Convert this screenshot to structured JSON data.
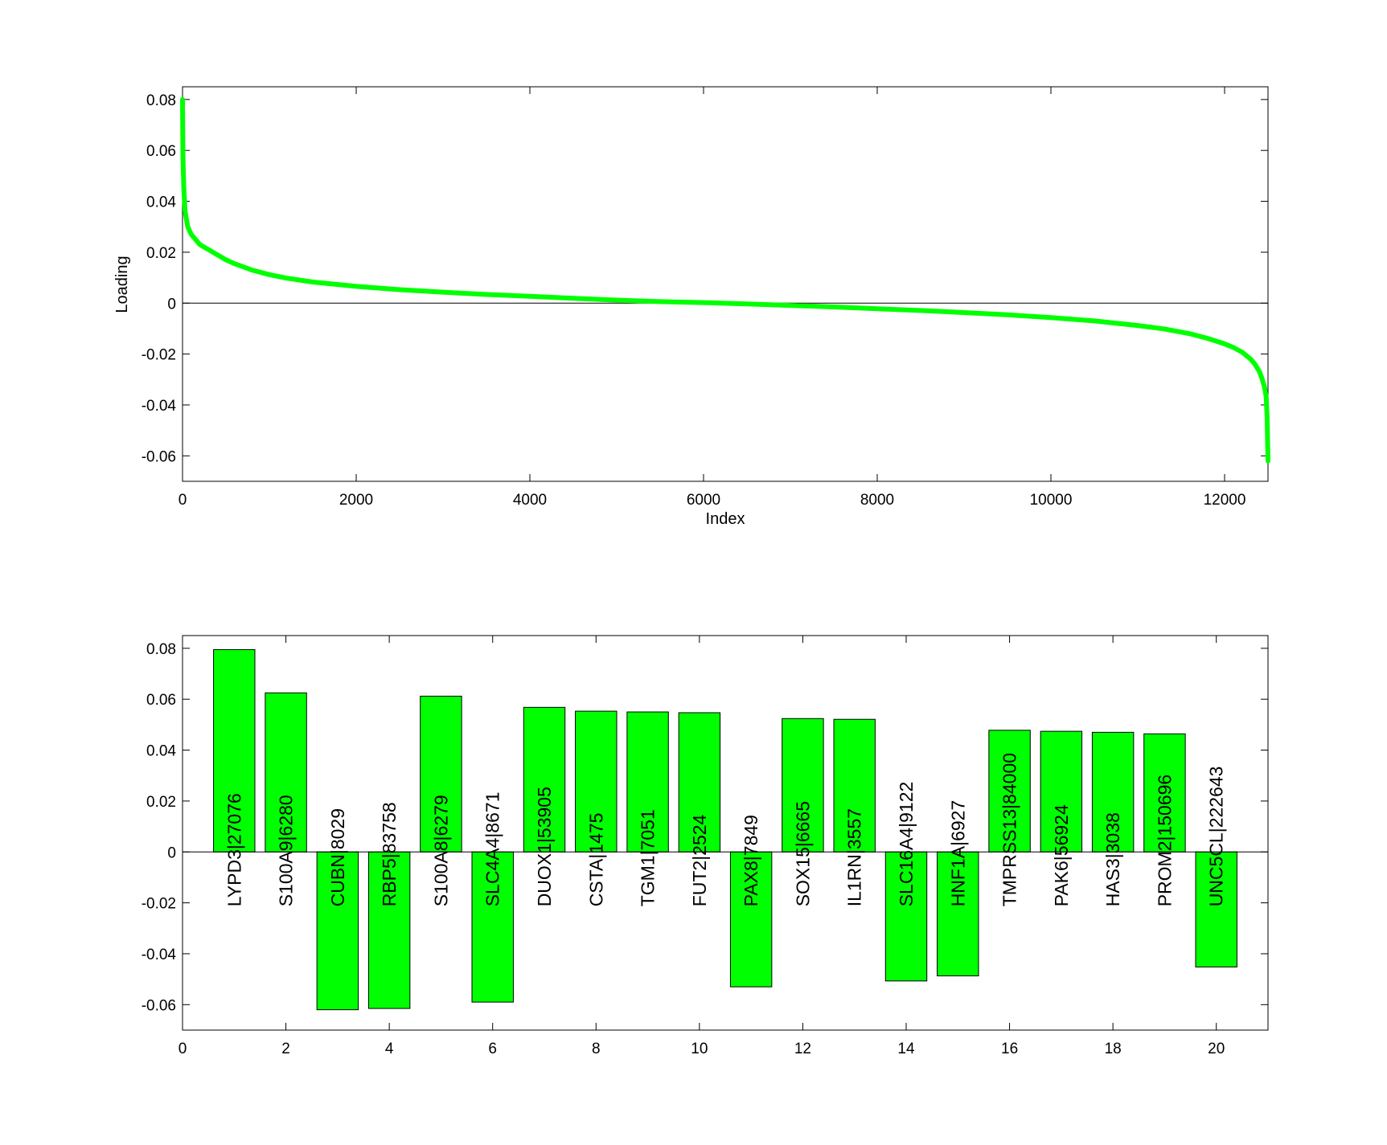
{
  "figure": {
    "background": "#ffffff",
    "accent": "#00ff00"
  },
  "chart_data": [
    {
      "type": "line",
      "title": "",
      "xlabel": "Index",
      "ylabel": "Loading",
      "xlim": [
        0,
        12500
      ],
      "ylim": [
        -0.07,
        0.085
      ],
      "x_ticks": [
        0,
        2000,
        4000,
        6000,
        8000,
        10000,
        12000
      ],
      "x_tick_labels": [
        "0",
        "2000",
        "4000",
        "6000",
        "8000",
        "10000",
        "12000"
      ],
      "y_ticks": [
        0.08,
        0.06,
        0.04,
        0.02,
        0,
        -0.02,
        -0.04,
        -0.06
      ],
      "y_tick_labels": [
        "0.08",
        "0.06",
        "0.04",
        "0.02",
        "0",
        "-0.02",
        "-0.04",
        "-0.06"
      ],
      "zero_line": true,
      "grid": false,
      "series": [
        {
          "color": "#00ff00",
          "x": [
            0,
            5,
            15,
            30,
            60,
            100,
            150,
            200,
            300,
            400,
            500,
            600,
            800,
            1000,
            1200,
            1500,
            2000,
            2500,
            3000,
            3500,
            4000,
            4500,
            5000,
            5500,
            6000,
            6500,
            7000,
            7500,
            8000,
            8500,
            9000,
            9500,
            10000,
            10500,
            11000,
            11300,
            11600,
            11800,
            12000,
            12100,
            12200,
            12300,
            12350,
            12400,
            12430,
            12460,
            12480,
            12490,
            12500
          ],
          "y": [
            0.08,
            0.058,
            0.045,
            0.036,
            0.03,
            0.027,
            0.025,
            0.023,
            0.021,
            0.019,
            0.017,
            0.0155,
            0.013,
            0.0112,
            0.0098,
            0.0083,
            0.0066,
            0.0053,
            0.0043,
            0.0034,
            0.0027,
            0.0019,
            0.0012,
            0.0006,
            0.0002,
            -0.0003,
            -0.0009,
            -0.0015,
            -0.0022,
            -0.0029,
            -0.0037,
            -0.0046,
            -0.0057,
            -0.007,
            -0.0088,
            -0.0101,
            -0.012,
            -0.0138,
            -0.016,
            -0.0174,
            -0.0192,
            -0.022,
            -0.024,
            -0.0268,
            -0.0295,
            -0.033,
            -0.037,
            -0.045,
            -0.062
          ]
        }
      ]
    },
    {
      "type": "bar",
      "title": "",
      "xlabel": "",
      "ylabel": "",
      "xlim": [
        0,
        21
      ],
      "ylim": [
        -0.07,
        0.085
      ],
      "x_ticks": [
        0,
        2,
        4,
        6,
        8,
        10,
        12,
        14,
        16,
        18,
        20
      ],
      "x_tick_labels": [
        "0",
        "2",
        "4",
        "6",
        "8",
        "10",
        "12",
        "14",
        "16",
        "18",
        "20"
      ],
      "y_ticks": [
        0.08,
        0.06,
        0.04,
        0.02,
        0,
        -0.02,
        -0.04,
        -0.06
      ],
      "y_tick_labels": [
        "0.08",
        "0.06",
        "0.04",
        "0.02",
        "0",
        "-0.02",
        "-0.04",
        "-0.06"
      ],
      "zero_line": true,
      "grid": false,
      "bar_color": "#00ff00",
      "x": [
        1,
        2,
        3,
        4,
        5,
        6,
        7,
        8,
        9,
        10,
        11,
        12,
        13,
        14,
        15,
        16,
        17,
        18,
        19,
        20
      ],
      "categories": [
        "LYPD3|27076",
        "S100A9|6280",
        "CUBN|8029",
        "RBP5|83758",
        "S100A8|6279",
        "SLC4A4|8671",
        "DUOX1|53905",
        "CSTA|1475",
        "TGM1|7051",
        "FUT2|2524",
        "PAX8|7849",
        "SOX15|6665",
        "IL1RN|3557",
        "SLC16A4|9122",
        "HNF1A|6927",
        "TMPRSS13|84000",
        "PAK6|56924",
        "HAS3|3038",
        "PROM2|150696",
        "UNC5CL|222643"
      ],
      "values": [
        0.0795,
        0.0625,
        -0.062,
        -0.0615,
        0.0612,
        -0.059,
        0.0568,
        0.0553,
        0.055,
        0.0547,
        -0.053,
        0.0524,
        0.0521,
        -0.0507,
        -0.0487,
        0.0478,
        0.0474,
        0.047,
        0.0464,
        -0.0452
      ]
    }
  ]
}
